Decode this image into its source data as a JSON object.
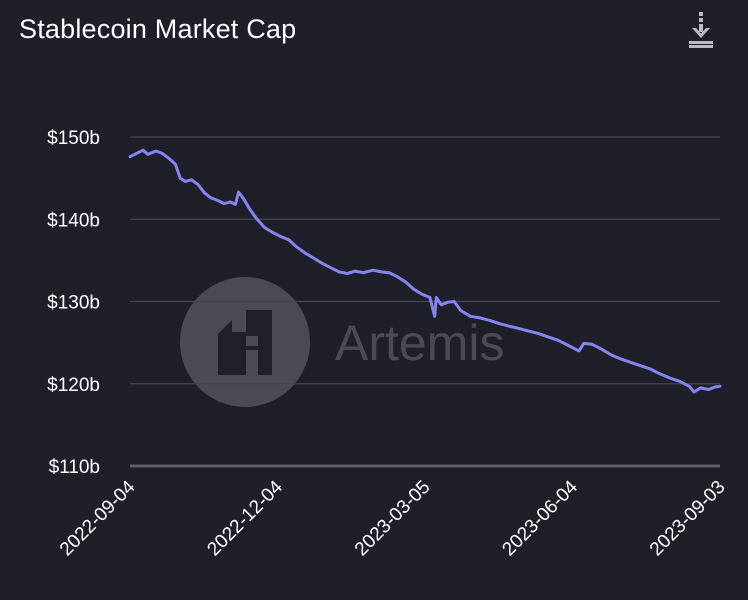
{
  "chart_data": {
    "type": "line",
    "title": "Stablecoin Market Cap",
    "ylim": [
      110,
      150
    ],
    "yticks": [
      110,
      120,
      130,
      140,
      150
    ],
    "ytick_labels": [
      "$110b",
      "$120b",
      "$130b",
      "$140b",
      "$150b"
    ],
    "xlim": [
      "2022-09-04",
      "2023-09-03"
    ],
    "xtick_labels": [
      "2022-09-04",
      "2022-12-04",
      "2023-03-05",
      "2023-06-04",
      "2023-09-03"
    ],
    "grid": true,
    "colors": {
      "line": "#8585f0",
      "grid": "#45464f",
      "axis": "#5c5d66",
      "background": "#1e1f29"
    },
    "series": [
      {
        "points": [
          [
            "2022-09-04",
            147.6
          ],
          [
            "2022-09-08",
            148.0
          ],
          [
            "2022-09-12",
            148.4
          ],
          [
            "2022-09-15",
            147.9
          ],
          [
            "2022-09-20",
            148.3
          ],
          [
            "2022-09-24",
            148.0
          ],
          [
            "2022-09-28",
            147.4
          ],
          [
            "2022-10-02",
            146.7
          ],
          [
            "2022-10-05",
            145.0
          ],
          [
            "2022-10-08",
            144.6
          ],
          [
            "2022-10-12",
            144.8
          ],
          [
            "2022-10-16",
            144.2
          ],
          [
            "2022-10-20",
            143.2
          ],
          [
            "2022-10-24",
            142.6
          ],
          [
            "2022-10-28",
            142.3
          ],
          [
            "2022-11-01",
            141.9
          ],
          [
            "2022-11-05",
            142.1
          ],
          [
            "2022-11-08",
            141.8
          ],
          [
            "2022-11-10",
            143.3
          ],
          [
            "2022-11-13",
            142.5
          ],
          [
            "2022-11-17",
            141.2
          ],
          [
            "2022-11-21",
            140.1
          ],
          [
            "2022-11-26",
            139.0
          ],
          [
            "2022-12-01",
            138.4
          ],
          [
            "2022-12-06",
            137.9
          ],
          [
            "2022-12-11",
            137.5
          ],
          [
            "2022-12-16",
            136.6
          ],
          [
            "2022-12-21",
            135.9
          ],
          [
            "2022-12-26",
            135.3
          ],
          [
            "2023-01-01",
            134.6
          ],
          [
            "2023-01-06",
            134.1
          ],
          [
            "2023-01-11",
            133.6
          ],
          [
            "2023-01-16",
            133.4
          ],
          [
            "2023-01-21",
            133.7
          ],
          [
            "2023-01-26",
            133.5
          ],
          [
            "2023-02-01",
            133.8
          ],
          [
            "2023-02-06",
            133.6
          ],
          [
            "2023-02-11",
            133.5
          ],
          [
            "2023-02-16",
            133.0
          ],
          [
            "2023-02-21",
            132.4
          ],
          [
            "2023-02-26",
            131.5
          ],
          [
            "2023-03-03",
            130.9
          ],
          [
            "2023-03-08",
            130.5
          ],
          [
            "2023-03-11",
            128.2
          ],
          [
            "2023-03-12",
            130.5
          ],
          [
            "2023-03-15",
            129.6
          ],
          [
            "2023-03-19",
            129.9
          ],
          [
            "2023-03-23",
            130.0
          ],
          [
            "2023-03-27",
            128.9
          ],
          [
            "2023-04-02",
            128.2
          ],
          [
            "2023-04-08",
            128.0
          ],
          [
            "2023-04-14",
            127.7
          ],
          [
            "2023-04-20",
            127.3
          ],
          [
            "2023-04-26",
            127.0
          ],
          [
            "2023-05-02",
            126.7
          ],
          [
            "2023-05-08",
            126.4
          ],
          [
            "2023-05-14",
            126.1
          ],
          [
            "2023-05-20",
            125.7
          ],
          [
            "2023-05-26",
            125.3
          ],
          [
            "2023-06-01",
            124.7
          ],
          [
            "2023-06-05",
            124.3
          ],
          [
            "2023-06-08",
            124.0
          ],
          [
            "2023-06-11",
            124.9
          ],
          [
            "2023-06-16",
            124.8
          ],
          [
            "2023-06-22",
            124.2
          ],
          [
            "2023-06-28",
            123.5
          ],
          [
            "2023-07-04",
            123.0
          ],
          [
            "2023-07-10",
            122.6
          ],
          [
            "2023-07-16",
            122.2
          ],
          [
            "2023-07-22",
            121.8
          ],
          [
            "2023-07-28",
            121.2
          ],
          [
            "2023-08-03",
            120.7
          ],
          [
            "2023-08-09",
            120.3
          ],
          [
            "2023-08-15",
            119.7
          ],
          [
            "2023-08-18",
            119.0
          ],
          [
            "2023-08-22",
            119.5
          ],
          [
            "2023-08-27",
            119.3
          ],
          [
            "2023-08-31",
            119.6
          ],
          [
            "2023-09-03",
            119.7
          ]
        ]
      }
    ]
  },
  "watermark": {
    "text": "Artemis"
  },
  "toolbar": {
    "download_icon": "download-icon"
  }
}
